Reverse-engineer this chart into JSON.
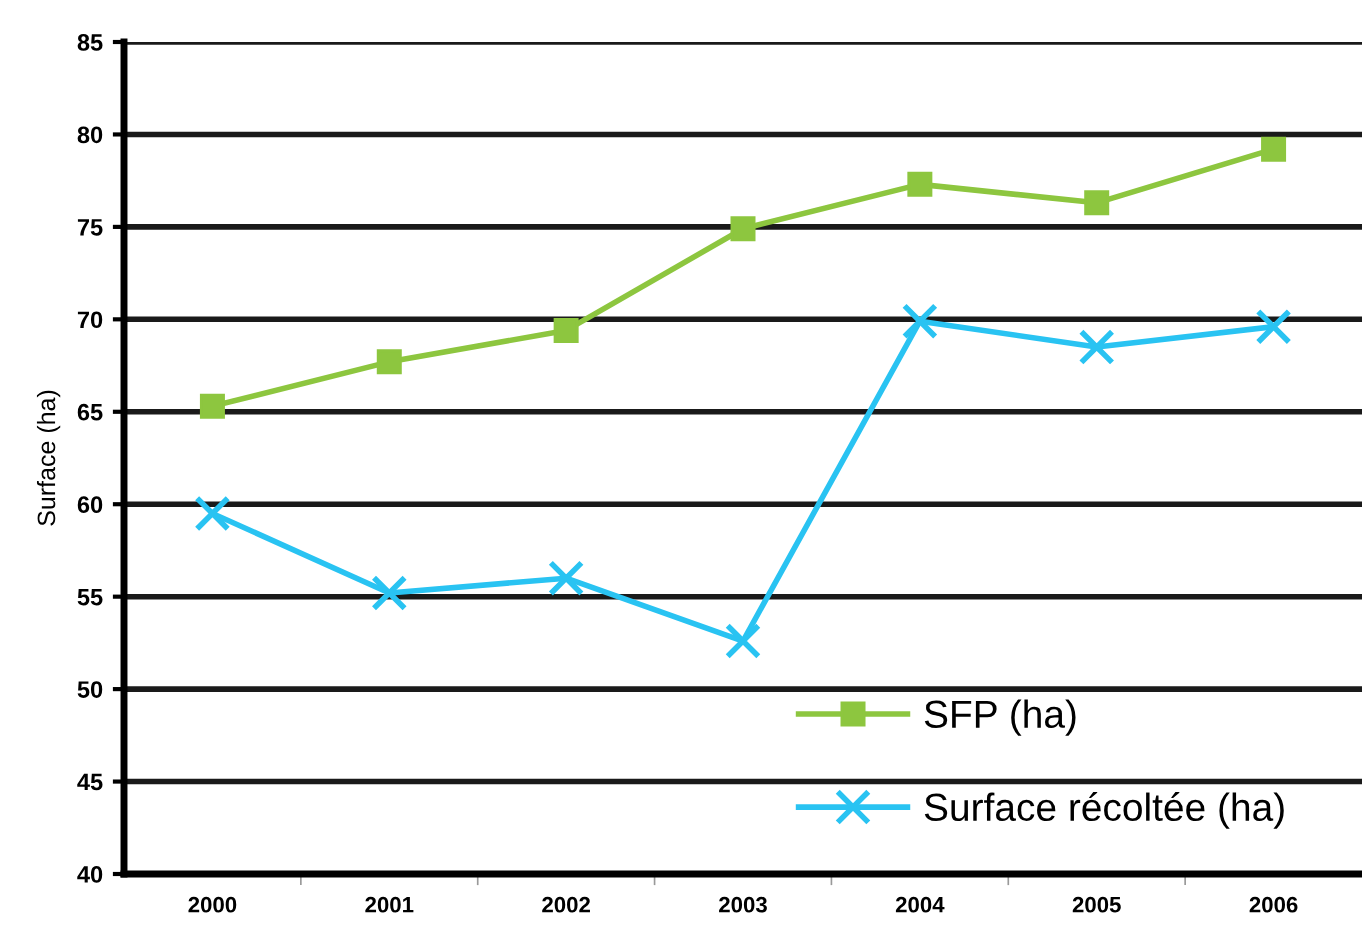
{
  "chart_data": {
    "type": "line",
    "ylabel": "Surface (ha)",
    "categories": [
      "2000",
      "2001",
      "2002",
      "2003",
      "2004",
      "2005",
      "2006"
    ],
    "series": [
      {
        "name": "SFP (ha)",
        "color": "#8dc63f",
        "marker": "square",
        "values": [
          65.3,
          67.7,
          69.4,
          74.9,
          77.3,
          76.3,
          79.2
        ]
      },
      {
        "name": "Surface récoltée (ha)",
        "color": "#29c3f2",
        "marker": "cross",
        "values": [
          59.5,
          55.2,
          56.0,
          52.6,
          69.9,
          68.5,
          69.6
        ]
      }
    ],
    "ylim": [
      40,
      85
    ],
    "yticks": [
      40,
      45,
      50,
      55,
      60,
      65,
      70,
      75,
      80,
      85
    ],
    "grid": "y",
    "legend": "bottom right",
    "line_style": "solid"
  }
}
